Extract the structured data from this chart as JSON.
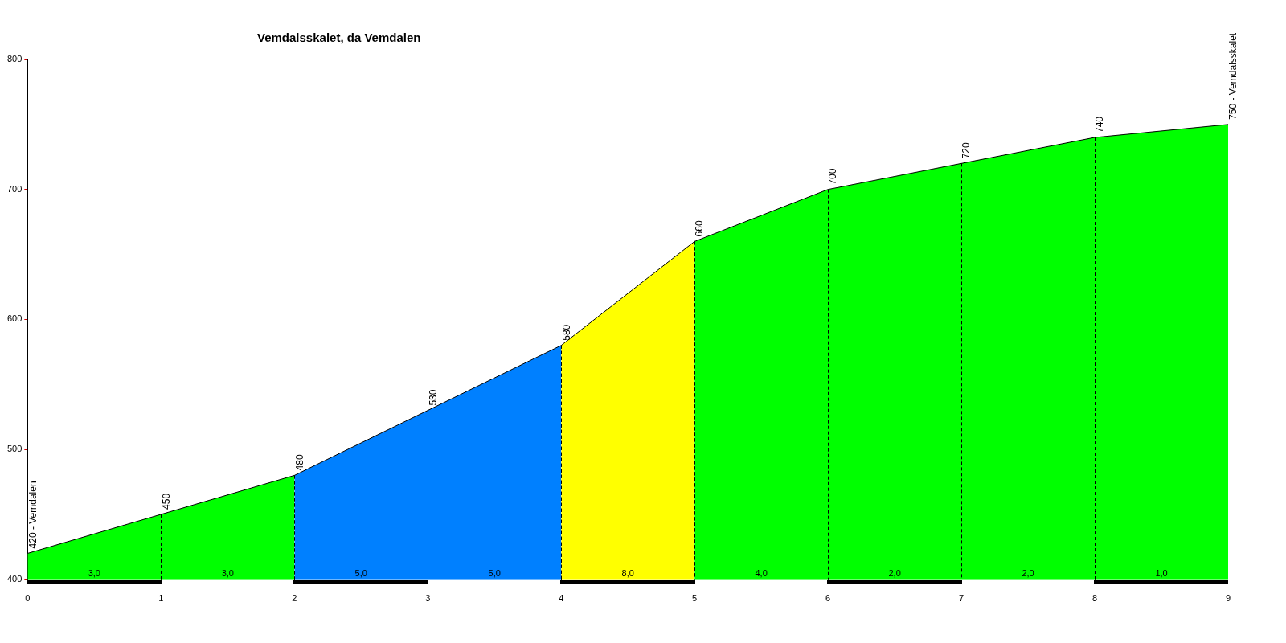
{
  "chart_data": {
    "type": "area",
    "title": "Vemdalsskalet, da Vemdalen",
    "xlim": [
      0,
      9
    ],
    "xticks": [
      0,
      1,
      2,
      3,
      4,
      5,
      6,
      7,
      8,
      9
    ],
    "ylim": [
      400,
      800
    ],
    "yticks": [
      400,
      500,
      600,
      700,
      800
    ],
    "grid": "x",
    "marker": "none",
    "series": [
      {
        "color": "#00ff00",
        "x": [
          0,
          1,
          2
        ],
        "values": [
          420,
          450,
          480
        ],
        "value_labels": [
          "420 - Vemdalen",
          "450",
          "480"
        ]
      },
      {
        "color": "#0080ff",
        "x": [
          2,
          3,
          4
        ],
        "values": [
          480,
          530,
          580
        ],
        "value_labels": [
          null,
          "530",
          "580"
        ]
      },
      {
        "color": "#ffff00",
        "x": [
          4,
          5
        ],
        "values": [
          580,
          660
        ],
        "value_labels": [
          null,
          "660"
        ]
      },
      {
        "color": "#00ff00",
        "x": [
          5,
          6,
          7,
          8,
          9
        ],
        "values": [
          660,
          700,
          720,
          740,
          750
        ],
        "value_labels": [
          null,
          "700",
          "720",
          "740",
          "750 - Vemdalsskalet"
        ]
      }
    ],
    "annotations": [
      {
        "text": "3,0",
        "x": 0.5,
        "y": 400
      },
      {
        "text": "3,0",
        "x": 1.5,
        "y": 400
      },
      {
        "text": "5,0",
        "x": 2.5,
        "y": 400
      },
      {
        "text": "5,0",
        "x": 3.5,
        "y": 400
      },
      {
        "text": "8,0",
        "x": 4.5,
        "y": 400
      },
      {
        "text": "4,0",
        "x": 5.5,
        "y": 400
      },
      {
        "text": "2,0",
        "x": 6.5,
        "y": 400
      },
      {
        "text": "2,0",
        "x": 7.5,
        "y": 400
      },
      {
        "text": "1,0",
        "x": 8.5,
        "y": 400
      }
    ]
  }
}
